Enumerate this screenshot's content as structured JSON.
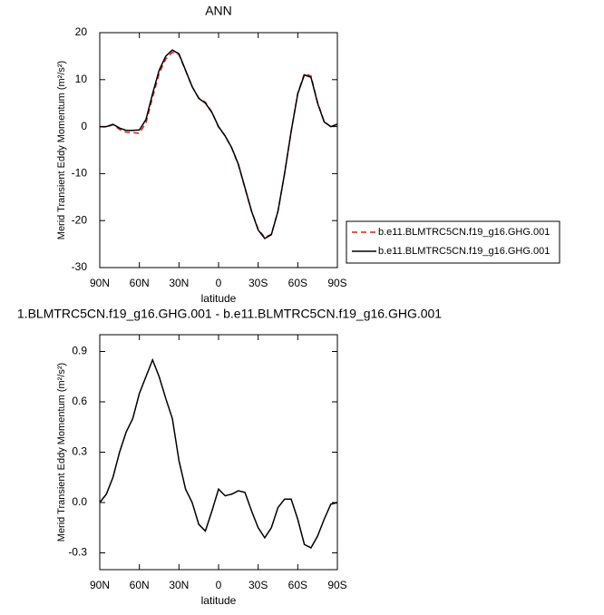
{
  "chart_data": [
    {
      "type": "line",
      "title": "ANN",
      "xlabel": "latitude",
      "ylabel": "Merid Transient Eddy Momentum (m²/s²)",
      "x": [
        90,
        85,
        80,
        75,
        70,
        65,
        60,
        55,
        50,
        45,
        40,
        35,
        30,
        25,
        20,
        15,
        10,
        5,
        0,
        -5,
        -10,
        -15,
        -20,
        -25,
        -30,
        -35,
        -40,
        -45,
        -50,
        -55,
        -60,
        -65,
        -70,
        -75,
        -80,
        -85,
        -90
      ],
      "series": [
        {
          "name": "b.e11.BLMTRC5CN.f19_g16.GHG.001",
          "color": "#d62020",
          "line_style": "dashed",
          "values": [
            0,
            -0.1,
            0.4,
            -0.6,
            -1.2,
            -1.3,
            -1.4,
            0.8,
            6.2,
            11.3,
            14.4,
            15.8,
            15.3,
            11.9,
            8.5,
            6.1,
            5.2,
            3.1,
            -0.1,
            -2,
            -4.6,
            -8.1,
            -13.1,
            -18,
            -21.8,
            -23.6,
            -22.9,
            -18,
            -10,
            -1,
            7.1,
            11.3,
            10.8,
            5.2,
            1.1,
            0,
            0.5
          ]
        },
        {
          "name": "b.e11.BLMTRC5CN.f19_g16.GHG.001",
          "color": "#000000",
          "line_style": "solid",
          "values": [
            0,
            0,
            0.5,
            -0.3,
            -0.8,
            -0.8,
            -0.7,
            1.5,
            7,
            12,
            15,
            16.3,
            15.5,
            12,
            8.5,
            6,
            5,
            3,
            0,
            -2,
            -4.5,
            -8,
            -13,
            -18,
            -22,
            -23.8,
            -23,
            -18,
            -10,
            -1,
            7,
            11,
            10.5,
            5,
            1,
            0,
            0.5
          ]
        }
      ],
      "xlim": [
        90,
        -90
      ],
      "xticks": [
        {
          "value": 90,
          "label": "90N"
        },
        {
          "value": 60,
          "label": "60N"
        },
        {
          "value": 30,
          "label": "30N"
        },
        0,
        {
          "value": -30,
          "label": "30S"
        },
        {
          "value": -60,
          "label": "60S"
        },
        {
          "value": -90,
          "label": "90S"
        }
      ],
      "ylim": [
        -30,
        20
      ],
      "yticks": [
        -30,
        -20,
        -10,
        0,
        10,
        20
      ],
      "legend": "right"
    },
    {
      "type": "line",
      "title": "1.BLMTRC5CN.f19_g16.GHG.001 - b.e11.BLMTRC5CN.f19_g16.GHG.001",
      "xlabel": "latitude",
      "ylabel": "Merid Transient Eddy Momentum (m²/s²)",
      "x": [
        90,
        85,
        80,
        75,
        70,
        65,
        60,
        55,
        50,
        45,
        40,
        35,
        30,
        25,
        20,
        15,
        10,
        5,
        0,
        -5,
        -10,
        -15,
        -20,
        -25,
        -30,
        -35,
        -40,
        -45,
        -50,
        -55,
        -60,
        -65,
        -70,
        -75,
        -80,
        -85,
        -90
      ],
      "series": [
        {
          "color": "#000000",
          "line_style": "solid",
          "values": [
            0,
            0.05,
            0.15,
            0.3,
            0.42,
            0.5,
            0.65,
            0.75,
            0.85,
            0.75,
            0.62,
            0.5,
            0.25,
            0.08,
            0,
            -0.13,
            -0.17,
            -0.05,
            0.08,
            0.04,
            0.05,
            0.07,
            0.06,
            -0.05,
            -0.15,
            -0.21,
            -0.15,
            -0.03,
            0.02,
            0.02,
            -0.1,
            -0.25,
            -0.27,
            -0.2,
            -0.1,
            -0.01,
            0
          ]
        }
      ],
      "xlim": [
        90,
        -90
      ],
      "xticks": [
        {
          "value": 90,
          "label": "90N"
        },
        {
          "value": 60,
          "label": "60N"
        },
        {
          "value": 30,
          "label": "30N"
        },
        0,
        {
          "value": -30,
          "label": "30S"
        },
        {
          "value": -60,
          "label": "60S"
        },
        {
          "value": -90,
          "label": "90S"
        }
      ],
      "ylim": [
        -0.4,
        1.0
      ],
      "yticks": [
        -0.3,
        {
          "value": 0,
          "label": "0.0"
        },
        0.3,
        0.6,
        0.9
      ]
    }
  ]
}
